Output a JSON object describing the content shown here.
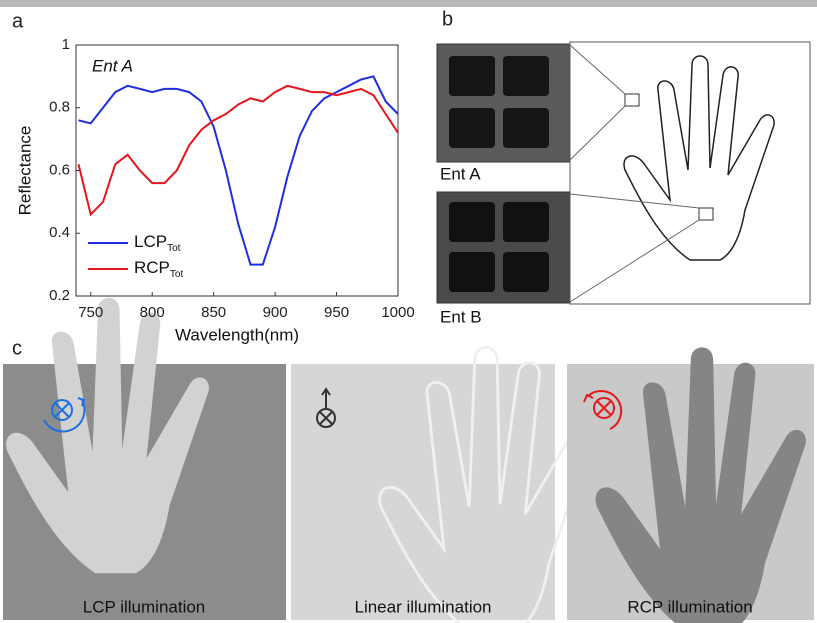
{
  "panels": {
    "a": {
      "letter": "a"
    },
    "b": {
      "letter": "b",
      "labels": [
        "Ent A",
        "Ent B"
      ]
    },
    "c": {
      "letter": "c",
      "captions": [
        "LCP illumination",
        "Linear illumination",
        "RCP illumination"
      ]
    }
  },
  "chart_data": {
    "type": "line",
    "annotation": "Ent A",
    "x_label": "Wavelength(nm)",
    "y_label": "Reflectance",
    "x": [
      740,
      750,
      760,
      770,
      780,
      790,
      800,
      810,
      820,
      830,
      840,
      850,
      860,
      870,
      880,
      890,
      900,
      910,
      920,
      930,
      940,
      950,
      960,
      970,
      980,
      990,
      1000
    ],
    "series": [
      {
        "name": "LCP",
        "subscript": "Tot",
        "color": "#1f2fe0",
        "values": [
          0.76,
          0.75,
          0.8,
          0.85,
          0.87,
          0.86,
          0.85,
          0.86,
          0.86,
          0.85,
          0.82,
          0.74,
          0.6,
          0.43,
          0.3,
          0.3,
          0.42,
          0.58,
          0.71,
          0.79,
          0.83,
          0.85,
          0.87,
          0.89,
          0.9,
          0.82,
          0.78
        ]
      },
      {
        "name": "RCP",
        "subscript": "Tot",
        "color": "#e8141b",
        "values": [
          0.62,
          0.46,
          0.5,
          0.62,
          0.65,
          0.6,
          0.56,
          0.56,
          0.6,
          0.68,
          0.73,
          0.76,
          0.78,
          0.81,
          0.83,
          0.82,
          0.85,
          0.87,
          0.86,
          0.85,
          0.85,
          0.84,
          0.85,
          0.86,
          0.84,
          0.78,
          0.72
        ]
      }
    ],
    "xlim": [
      738,
      1000
    ],
    "xticks": [
      750,
      800,
      850,
      900,
      950,
      1000
    ],
    "ylim": [
      0.2,
      1
    ],
    "yticks": [
      0.2,
      0.4,
      0.6,
      0.8,
      1
    ]
  }
}
